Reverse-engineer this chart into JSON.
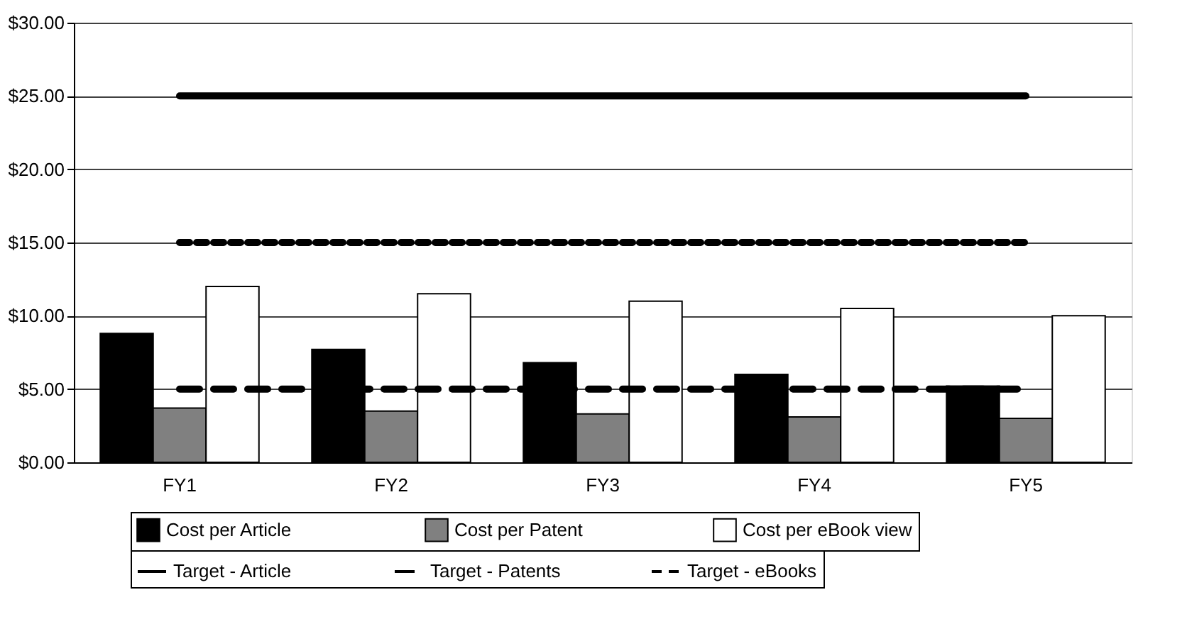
{
  "chart_data": {
    "type": "bar",
    "categories": [
      "FY1",
      "FY2",
      "FY3",
      "FY4",
      "FY5"
    ],
    "series": [
      {
        "name": "Cost per Article",
        "color": "#000000",
        "values": [
          8.8,
          7.7,
          6.8,
          6.0,
          5.2
        ]
      },
      {
        "name": "Cost per Patent",
        "color": "#808080",
        "values": [
          3.7,
          3.5,
          3.3,
          3.1,
          3.0
        ]
      },
      {
        "name": "Cost per eBook view",
        "color": "#ffffff",
        "values": [
          12.0,
          11.5,
          11.0,
          10.5,
          10.0
        ]
      },
      {
        "name": "Target - Article",
        "type": "line",
        "color": "#000000",
        "line_style": "solid",
        "values": [
          25,
          25,
          25,
          25,
          25
        ]
      },
      {
        "name": "Target - Patents",
        "type": "line",
        "color": "#000000",
        "line_style": "dashed",
        "values": [
          5,
          5,
          5,
          5,
          5
        ]
      },
      {
        "name": "Target - eBooks",
        "type": "line",
        "color": "#000000",
        "line_style": "dotted",
        "values": [
          15,
          15,
          15,
          15,
          15
        ]
      }
    ],
    "ylim": [
      0,
      30
    ],
    "yticks": [
      {
        "value": 0,
        "label": "$0.00"
      },
      {
        "value": 5,
        "label": "$5.00"
      },
      {
        "value": 10,
        "label": "$10.00"
      },
      {
        "value": 15,
        "label": "$15.00"
      },
      {
        "value": 20,
        "label": "$20.00"
      },
      {
        "value": 25,
        "label": "$25.00"
      },
      {
        "value": 30,
        "label": "$30.00"
      }
    ],
    "grid": "y",
    "legend": "bottom"
  }
}
